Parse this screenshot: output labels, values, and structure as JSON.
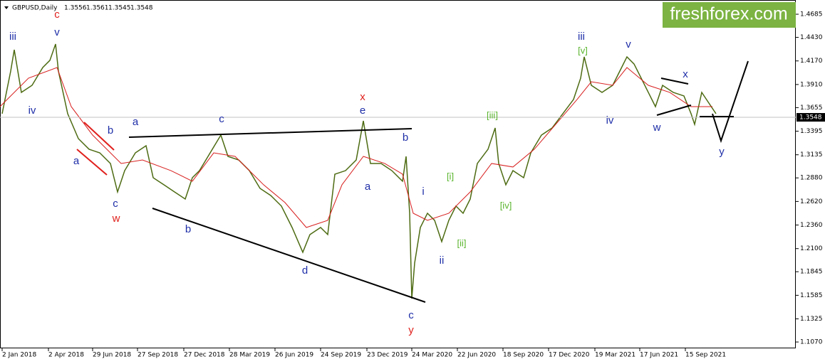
{
  "chart_data": {
    "type": "line",
    "symbol": "GBPUSD,Daily",
    "ohlc": [
      1.3556,
      1.3561,
      1.3545,
      1.3548
    ],
    "last_price": 1.3548,
    "brand": "freshforex.com",
    "xlim": [
      0,
      1117
    ],
    "ylim": [
      1.1,
      1.4842
    ],
    "xticks": [
      {
        "value": 3,
        "label": "2 Jan 2018"
      },
      {
        "value": 68,
        "label": "2 Apr 2018"
      },
      {
        "value": 130,
        "label": "29 Jun 2018"
      },
      {
        "value": 193,
        "label": "27 Sep 2018"
      },
      {
        "value": 258,
        "label": "27 Dec 2018"
      },
      {
        "value": 322,
        "label": "28 Mar 2019"
      },
      {
        "value": 386,
        "label": "26 Jun 2019"
      },
      {
        "value": 450,
        "label": "24 Sep 2019"
      },
      {
        "value": 515,
        "label": "23 Dec 2019"
      },
      {
        "value": 578,
        "label": "24 Mar 2020"
      },
      {
        "value": 642,
        "label": "22 Jun 2020"
      },
      {
        "value": 706,
        "label": "18 Sep 2020"
      },
      {
        "value": 770,
        "label": "17 Dec 2020"
      },
      {
        "value": 835,
        "label": "19 Mar 2021"
      },
      {
        "value": 898,
        "label": "17 Jun 2021"
      },
      {
        "value": 962,
        "label": "15 Sep 2021"
      }
    ],
    "yticks": [
      1.4685,
      {
        "value": 1.443,
        "label": "1.4430"
      },
      {
        "value": 1.417,
        "label": "1.4170"
      },
      {
        "value": 1.391,
        "label": "1.3910"
      },
      1.3655,
      1.3395,
      1.3135,
      {
        "value": 1.288,
        "label": "1.2880"
      },
      {
        "value": 1.262,
        "label": "1.2620"
      },
      {
        "value": 1.236,
        "label": "1.2360"
      },
      {
        "value": 1.21,
        "label": "1.2100"
      },
      1.1845,
      1.1585,
      1.1325,
      {
        "value": 1.107,
        "label": "1.1070"
      }
    ],
    "series": [
      {
        "color": "#4d6b12",
        "x": [
          3,
          15,
          20,
          30,
          45,
          60,
          70,
          78,
          82,
          95,
          110,
          125,
          140,
          155,
          165,
          175,
          190,
          205,
          215,
          230,
          245,
          260,
          270,
          280,
          295,
          310,
          320,
          335,
          350,
          365,
          380,
          395,
          410,
          425,
          435,
          450,
          460,
          470,
          485,
          500,
          510,
          520,
          535,
          550,
          565,
          570,
          575,
          578,
          582,
          590,
          600,
          610,
          620,
          630,
          640,
          650,
          660,
          670,
          685,
          695,
          700,
          710,
          720,
          735,
          745,
          760,
          775,
          790,
          805,
          815,
          820,
          830,
          845,
          860,
          870,
          880,
          890,
          900,
          910,
          920,
          930,
          945,
          960,
          970,
          975,
          985,
          995,
          1005
        ],
        "values": [
          1.3588,
          1.4058,
          1.4293,
          1.3823,
          1.3901,
          1.4097,
          1.4176,
          1.4356,
          1.4058,
          1.3588,
          1.3313,
          1.3196,
          1.3156,
          1.3039,
          1.2725,
          1.296,
          1.3156,
          1.3235,
          1.2882,
          1.2804,
          1.2725,
          1.2647,
          1.2882,
          1.296,
          1.3156,
          1.3352,
          1.3117,
          1.3078,
          1.296,
          1.2764,
          1.2686,
          1.2569,
          1.2333,
          1.2059,
          1.2255,
          1.2333,
          1.2255,
          1.2921,
          1.296,
          1.3078,
          1.3509,
          1.3039,
          1.3039,
          1.296,
          1.2843,
          1.3117,
          1.249,
          1.1549,
          1.1941,
          1.2333,
          1.249,
          1.2412,
          1.2177,
          1.2412,
          1.2569,
          1.249,
          1.2647,
          1.3039,
          1.3196,
          1.3431,
          1.3039,
          1.2804,
          1.296,
          1.2882,
          1.3156,
          1.3352,
          1.3431,
          1.3588,
          1.3745,
          1.398,
          1.4215,
          1.3901,
          1.3823,
          1.3901,
          1.4058,
          1.4215,
          1.4136,
          1.398,
          1.3823,
          1.3666,
          1.3901,
          1.3823,
          1.3784,
          1.3588,
          1.347,
          1.3823,
          1.3705,
          1.3588
        ]
      },
      {
        "color": "#d81e1e",
        "x": [
          0,
          40,
          80,
          100,
          130,
          170,
          200,
          240,
          270,
          300,
          330,
          370,
          400,
          430,
          460,
          480,
          510,
          540,
          565,
          580,
          600,
          630,
          660,
          690,
          720,
          750,
          780,
          810,
          830,
          860,
          880,
          910,
          940,
          970,
          1000
        ],
        "values": [
          1.3666,
          1.398,
          1.4097,
          1.3666,
          1.3352,
          1.3039,
          1.3078,
          1.296,
          1.2843,
          1.3156,
          1.3117,
          1.2804,
          1.2608,
          1.2333,
          1.2412,
          1.2804,
          1.3117,
          1.3039,
          1.2921,
          1.249,
          1.2412,
          1.249,
          1.2725,
          1.3039,
          1.3,
          1.3196,
          1.347,
          1.3745,
          1.394,
          1.3901,
          1.4097,
          1.3901,
          1.3823,
          1.3666,
          1.3666
        ]
      }
    ],
    "annotations": [
      "iii",
      "v",
      "c",
      "iv",
      "b",
      "a",
      "c",
      "w",
      "a",
      "c",
      "x",
      "e",
      "b",
      "b",
      "d",
      "a",
      "c",
      "y",
      "i",
      "ii",
      "[i]",
      "[ii]",
      "[iii]",
      "[iv]",
      "iii",
      "[v]",
      "v",
      "iv",
      "w",
      "x",
      "y"
    ]
  }
}
